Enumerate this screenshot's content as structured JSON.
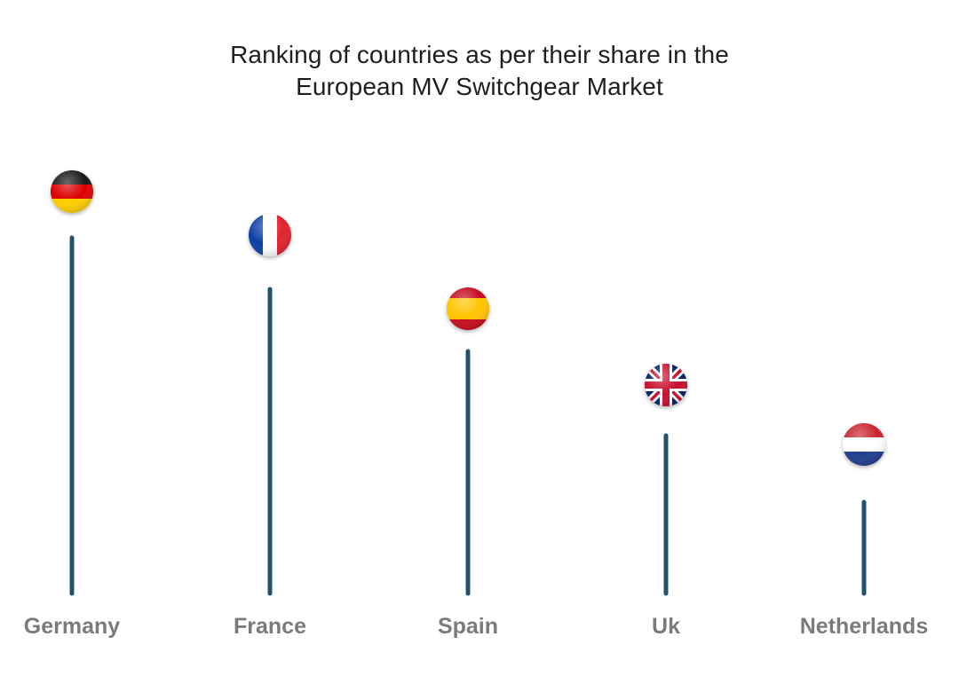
{
  "chart_data": {
    "type": "lollipop",
    "title": "Ranking of countries as per their share in the European MV Switchgear Market",
    "title_lines": [
      "Ranking of countries as per their share in the",
      "European MV Switchgear Market"
    ],
    "categories": [
      "Germany",
      "France",
      "Spain",
      "Uk",
      "Netherlands"
    ],
    "rank": [
      1,
      2,
      3,
      4,
      5
    ],
    "markers": [
      "germany-flag",
      "france-flag",
      "spain-flag",
      "uk-flag",
      "netherlands-flag"
    ],
    "stem_color": "#23526e",
    "label_color": "#7b7b7b",
    "grid": false,
    "legend": "none"
  }
}
